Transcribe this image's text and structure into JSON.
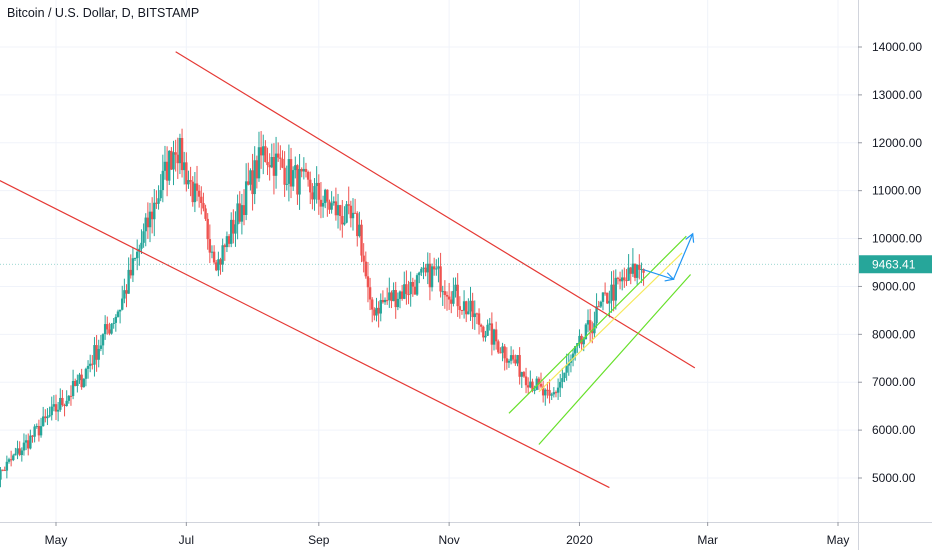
{
  "chart_data": {
    "type": "candlestick",
    "title": "Bitcoin / U.S. Dollar, D, BITSTAMP",
    "xlabel": "",
    "ylabel": "",
    "x_ticks": [
      "May",
      "Jul",
      "Sep",
      "Nov",
      "2020",
      "Mar",
      "May"
    ],
    "y_ticks": [
      "5000.00",
      "6000.00",
      "7000.00",
      "8000.00",
      "9000.00",
      "10000.00",
      "11000.00",
      "12000.00",
      "13000.00",
      "14000.00"
    ],
    "ylim": [
      4200,
      15000
    ],
    "last_price": 9463.41,
    "last_price_label": "9463.41",
    "grid": true,
    "colors": {
      "up": "#26a69a",
      "down": "#ef5350",
      "channel_down": "#e53935",
      "channel_up": "#66e029",
      "projection": "#2196f3",
      "midline": "#f5e85c",
      "price_tag": "#26a69a"
    },
    "key_points": [
      {
        "date": "2019-04-01",
        "close": 4900
      },
      {
        "date": "2019-05-12",
        "close": 7000
      },
      {
        "date": "2019-05-31",
        "close": 8600
      },
      {
        "date": "2019-06-26",
        "close": 12000
      },
      {
        "date": "2019-07-16",
        "close": 9500
      },
      {
        "date": "2019-08-06",
        "close": 11800
      },
      {
        "date": "2019-09-20",
        "close": 10200
      },
      {
        "date": "2019-09-25",
        "close": 8500
      },
      {
        "date": "2019-10-25",
        "close": 9300
      },
      {
        "date": "2019-12-18",
        "close": 6600
      },
      {
        "date": "2020-01-14",
        "close": 8800
      },
      {
        "date": "2020-01-31",
        "close": 9463
      }
    ],
    "drawings": {
      "descending_channel": [
        {
          "from": {
            "date": "2019-06-26",
            "price": 13900
          },
          "to": {
            "date": "2020-02-24",
            "price": 7300
          }
        },
        {
          "from": {
            "date": "2019-03-25",
            "price": 11450
          },
          "to": {
            "date": "2020-01-15",
            "price": 4800
          }
        }
      ],
      "ascending_channel": [
        {
          "from": {
            "date": "2019-11-29",
            "price": 6350
          },
          "to": {
            "date": "2020-02-20",
            "price": 10050
          }
        },
        {
          "from": {
            "date": "2019-12-13",
            "price": 5700
          },
          "to": {
            "date": "2020-02-22",
            "price": 9250
          }
        }
      ],
      "channel_midline": {
        "from": {
          "date": "2019-12-13",
          "price": 6800
        },
        "to": {
          "date": "2020-02-18",
          "price": 9700
        }
      },
      "projection_path": [
        {
          "date": "2020-01-31",
          "price": 9350
        },
        {
          "date": "2020-02-14",
          "price": 9150
        },
        {
          "date": "2020-02-23",
          "price": 10100
        }
      ]
    }
  },
  "series_up_color": "#26a69a",
  "series_down_color": "#ef5350"
}
